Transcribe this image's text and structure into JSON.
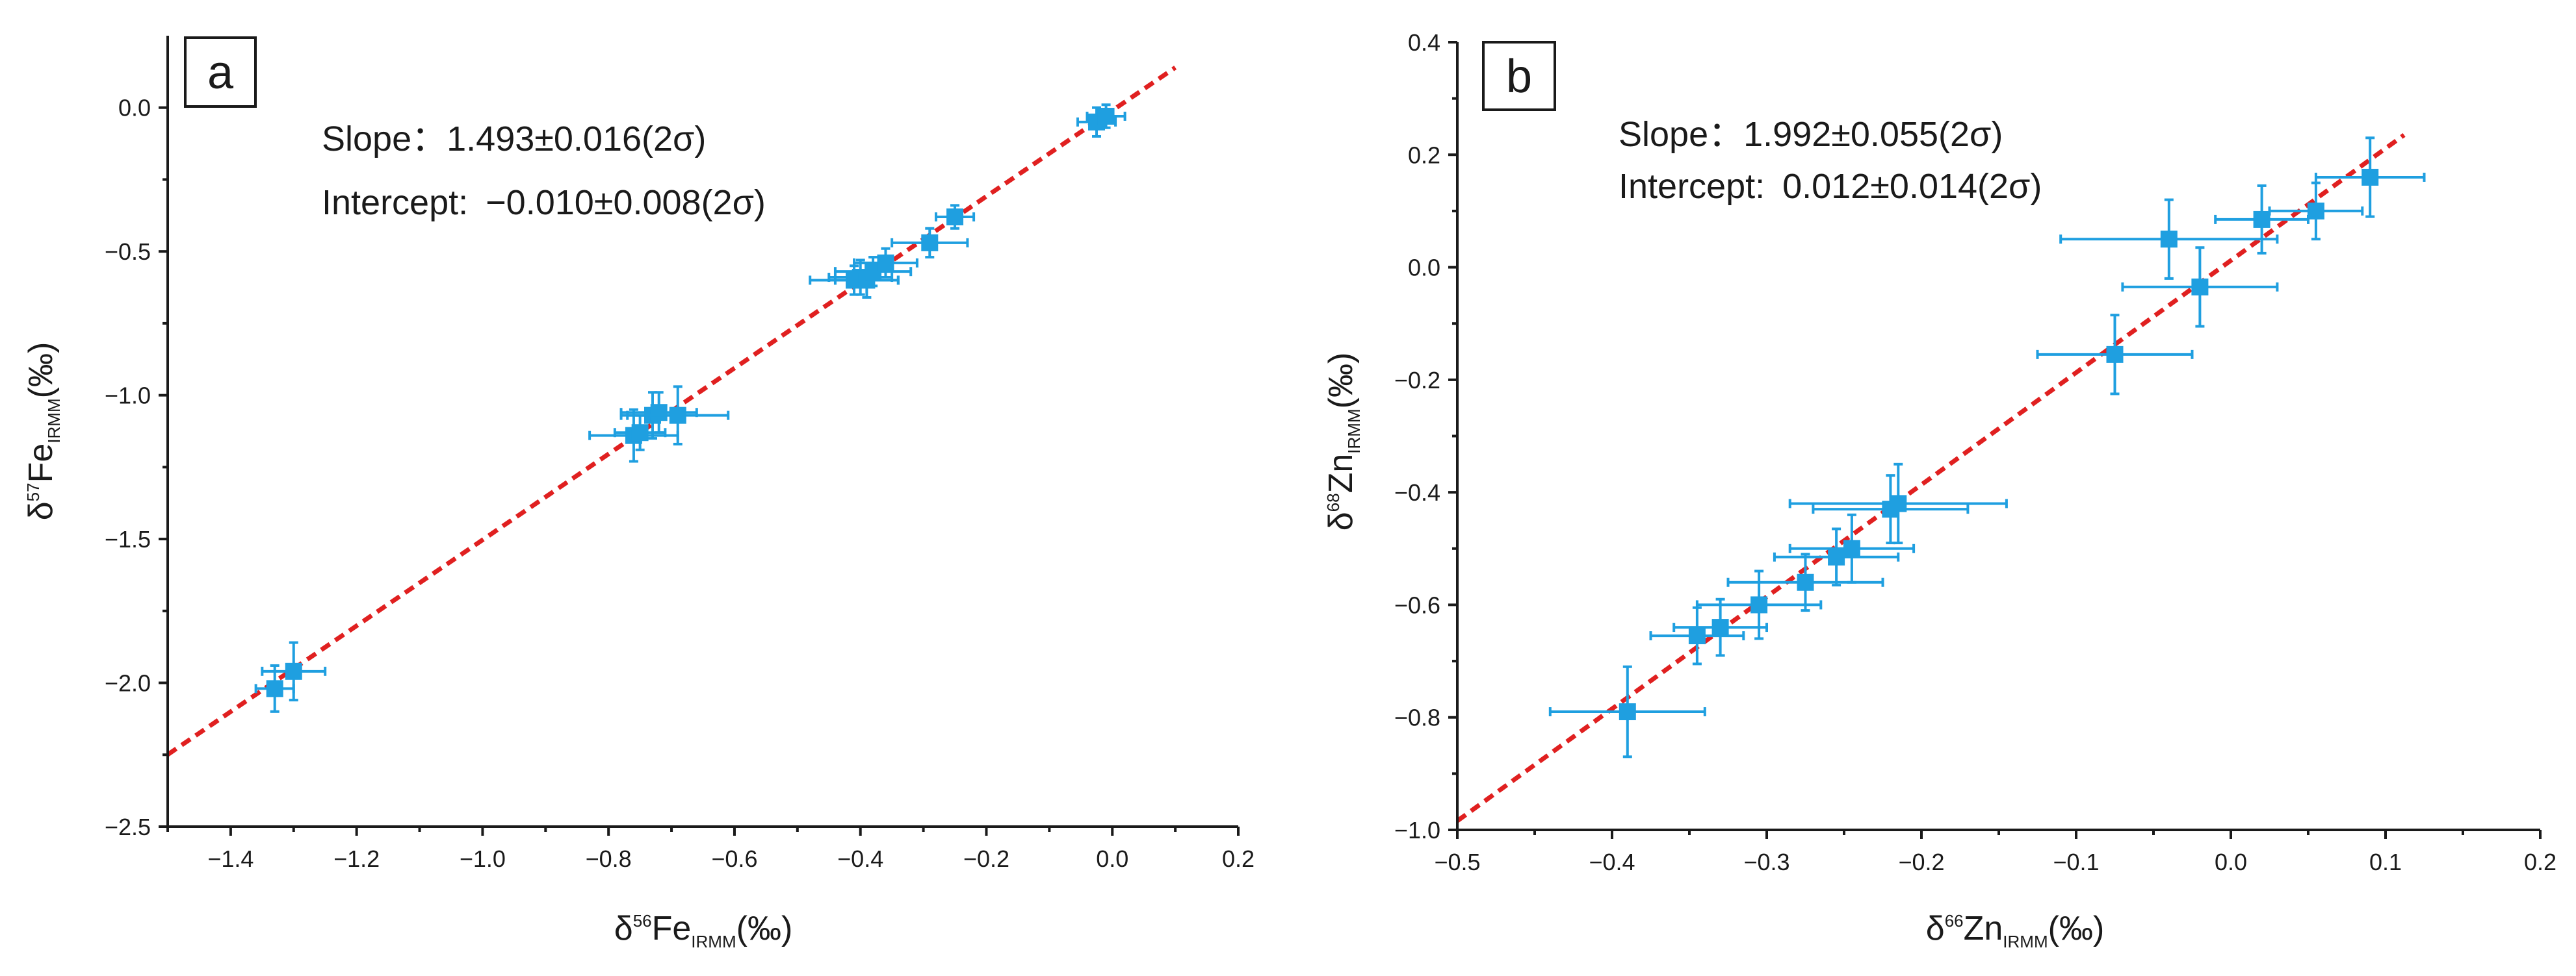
{
  "colors": {
    "points": "#1f9fe0",
    "fit_line": "#e02020",
    "axes": "#1a1a1a"
  },
  "chart_data": [
    {
      "panel": "a",
      "type": "scatter",
      "annotations": {
        "slope_label": "Slope：",
        "slope_value": "1.493±0.016(2σ)",
        "intercept_label": "Intercept: ",
        "intercept_value": "−0.010±0.008(2σ)"
      },
      "xlabel": {
        "prefix": "δ",
        "sup": "56",
        "main": "Fe",
        "sub": "IRMM",
        "unit": "(‰)"
      },
      "ylabel": {
        "prefix": "δ",
        "sup": "57",
        "main": "Fe",
        "sub": "IRMM",
        "unit": "(‰)"
      },
      "xlim": [
        -1.5,
        0.2
      ],
      "ylim": [
        -2.5,
        0.25
      ],
      "xticks": [
        -1.4,
        -1.2,
        -1.0,
        -0.8,
        -0.6,
        -0.4,
        -0.2,
        0.0,
        0.2
      ],
      "xtick_labels": [
        "−1.4",
        "−1.2",
        "−1.0",
        "−0.8",
        "−0.6",
        "−0.4",
        "−0.2",
        "0.0",
        "0.2"
      ],
      "yticks": [
        -2.5,
        -2.0,
        -1.5,
        -1.0,
        -0.5,
        0.0
      ],
      "ytick_labels": [
        "−2.5",
        "−2.0",
        "−1.5",
        "−1.0",
        "−0.5",
        "0.0"
      ],
      "fit": {
        "slope": 1.493,
        "intercept": -0.01
      },
      "points": [
        {
          "x": -1.33,
          "y": -2.02,
          "xerr": 0.03,
          "yerr": 0.08
        },
        {
          "x": -1.3,
          "y": -1.96,
          "xerr": 0.05,
          "yerr": 0.1
        },
        {
          "x": -0.76,
          "y": -1.14,
          "xerr": 0.07,
          "yerr": 0.09
        },
        {
          "x": -0.75,
          "y": -1.13,
          "xerr": 0.04,
          "yerr": 0.06
        },
        {
          "x": -0.73,
          "y": -1.07,
          "xerr": 0.05,
          "yerr": 0.08
        },
        {
          "x": -0.72,
          "y": -1.06,
          "xerr": 0.06,
          "yerr": 0.07
        },
        {
          "x": -0.69,
          "y": -1.07,
          "xerr": 0.08,
          "yerr": 0.1
        },
        {
          "x": -0.41,
          "y": -0.6,
          "xerr": 0.07,
          "yerr": 0.05
        },
        {
          "x": -0.4,
          "y": -0.59,
          "xerr": 0.05,
          "yerr": 0.06
        },
        {
          "x": -0.39,
          "y": -0.6,
          "xerr": 0.05,
          "yerr": 0.06
        },
        {
          "x": -0.38,
          "y": -0.57,
          "xerr": 0.06,
          "yerr": 0.05
        },
        {
          "x": -0.36,
          "y": -0.54,
          "xerr": 0.05,
          "yerr": 0.05
        },
        {
          "x": -0.29,
          "y": -0.47,
          "xerr": 0.06,
          "yerr": 0.05
        },
        {
          "x": -0.25,
          "y": -0.38,
          "xerr": 0.03,
          "yerr": 0.04
        },
        {
          "x": -0.025,
          "y": -0.05,
          "xerr": 0.03,
          "yerr": 0.05
        },
        {
          "x": -0.01,
          "y": -0.03,
          "xerr": 0.03,
          "yerr": 0.04
        }
      ]
    },
    {
      "panel": "b",
      "type": "scatter",
      "annotations": {
        "slope_label": "Slope：",
        "slope_value": "1.992±0.055(2σ)",
        "intercept_label": "Intercept: ",
        "intercept_value": "0.012±0.014(2σ)"
      },
      "xlabel": {
        "prefix": "δ",
        "sup": "66",
        "main": "Zn",
        "sub": "IRMM",
        "unit": "(‰)"
      },
      "ylabel": {
        "prefix": "δ",
        "sup": "68",
        "main": "Zn",
        "sub": "IRMM",
        "unit": "(‰)"
      },
      "xlim": [
        -0.5,
        0.2
      ],
      "ylim": [
        -1.0,
        0.4
      ],
      "xticks": [
        -0.5,
        -0.4,
        -0.3,
        -0.2,
        -0.1,
        0.0,
        0.1,
        0.2
      ],
      "xtick_labels": [
        "−0.5",
        "−0.4",
        "−0.3",
        "−0.2",
        "−0.1",
        "0.0",
        "0.1",
        "0.2"
      ],
      "yticks": [
        -1.0,
        -0.8,
        -0.6,
        -0.4,
        -0.2,
        0.0,
        0.2,
        0.4
      ],
      "ytick_labels": [
        "−1.0",
        "−0.8",
        "−0.6",
        "−0.4",
        "−0.2",
        "0.0",
        "0.2",
        "0.4"
      ],
      "fit": {
        "slope": 1.992,
        "intercept": 0.012
      },
      "points": [
        {
          "x": -0.39,
          "y": -0.79,
          "xerr": 0.05,
          "yerr": 0.08
        },
        {
          "x": -0.345,
          "y": -0.655,
          "xerr": 0.03,
          "yerr": 0.05
        },
        {
          "x": -0.33,
          "y": -0.64,
          "xerr": 0.03,
          "yerr": 0.05
        },
        {
          "x": -0.305,
          "y": -0.6,
          "xerr": 0.04,
          "yerr": 0.06
        },
        {
          "x": -0.275,
          "y": -0.56,
          "xerr": 0.05,
          "yerr": 0.05
        },
        {
          "x": -0.255,
          "y": -0.515,
          "xerr": 0.04,
          "yerr": 0.05
        },
        {
          "x": -0.245,
          "y": -0.5,
          "xerr": 0.04,
          "yerr": 0.06
        },
        {
          "x": -0.22,
          "y": -0.43,
          "xerr": 0.05,
          "yerr": 0.06
        },
        {
          "x": -0.215,
          "y": -0.42,
          "xerr": 0.07,
          "yerr": 0.07
        },
        {
          "x": -0.075,
          "y": -0.155,
          "xerr": 0.05,
          "yerr": 0.07
        },
        {
          "x": -0.04,
          "y": 0.05,
          "xerr": 0.07,
          "yerr": 0.07
        },
        {
          "x": -0.02,
          "y": -0.035,
          "xerr": 0.05,
          "yerr": 0.07
        },
        {
          "x": 0.02,
          "y": 0.085,
          "xerr": 0.03,
          "yerr": 0.06
        },
        {
          "x": 0.055,
          "y": 0.1,
          "xerr": 0.03,
          "yerr": 0.05
        },
        {
          "x": 0.09,
          "y": 0.16,
          "xerr": 0.035,
          "yerr": 0.07
        }
      ]
    }
  ]
}
